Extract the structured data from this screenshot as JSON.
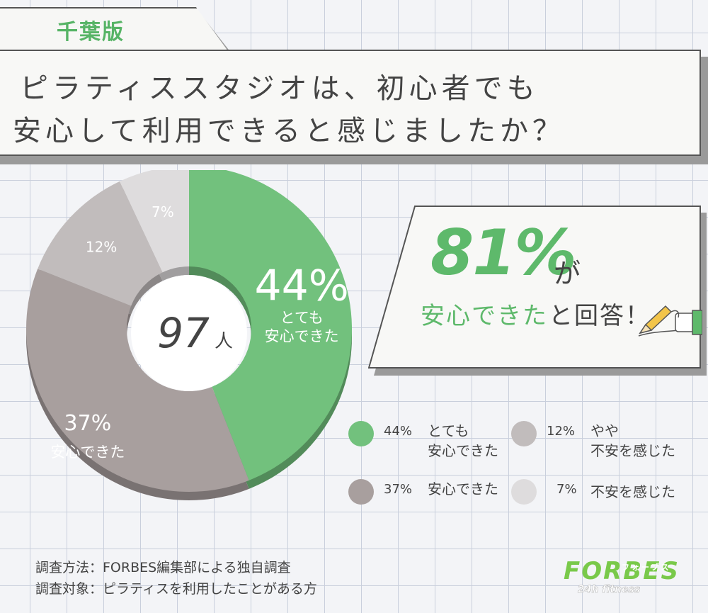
{
  "header": {
    "tag": "千葉版",
    "question_line1": "ピラティススタジオは、初心者でも",
    "question_line2": "安心して利用できると感じましたか？"
  },
  "chart_data": {
    "type": "pie",
    "center_label": {
      "number": "97",
      "unit": "人"
    },
    "slices": [
      {
        "value": 44,
        "pct_label": "44%",
        "inner_label": "とても\n安心できた",
        "legend_label": "とても\n安心できた",
        "color": "#72c17d"
      },
      {
        "value": 37,
        "pct_label": "37%",
        "inner_label": "安心できた",
        "legend_label": "安心できた",
        "color": "#a89f9e"
      },
      {
        "value": 12,
        "pct_label": "12%",
        "inner_label": "",
        "legend_label": "やや\n不安を感じた",
        "color": "#c1bcbc"
      },
      {
        "value": 7,
        "pct_label": "7%",
        "inner_label": "",
        "legend_label": "不安を感じた",
        "color": "#dedcdd"
      }
    ]
  },
  "callout": {
    "percent": "81%",
    "ga": "が",
    "answer_green": "安心できた",
    "answer_dark": "と回答！"
  },
  "footer": {
    "method": "調査方法：FORBES編集部による独自調査",
    "target": "調査対象：ピラティスを利用したことがある方"
  },
  "logo": {
    "main": "FORBES",
    "kana": "フォーブス",
    "sub": "24h fitness"
  },
  "colors": {
    "accent": "#5eb96b",
    "accent_dark": "#4a9a55"
  }
}
